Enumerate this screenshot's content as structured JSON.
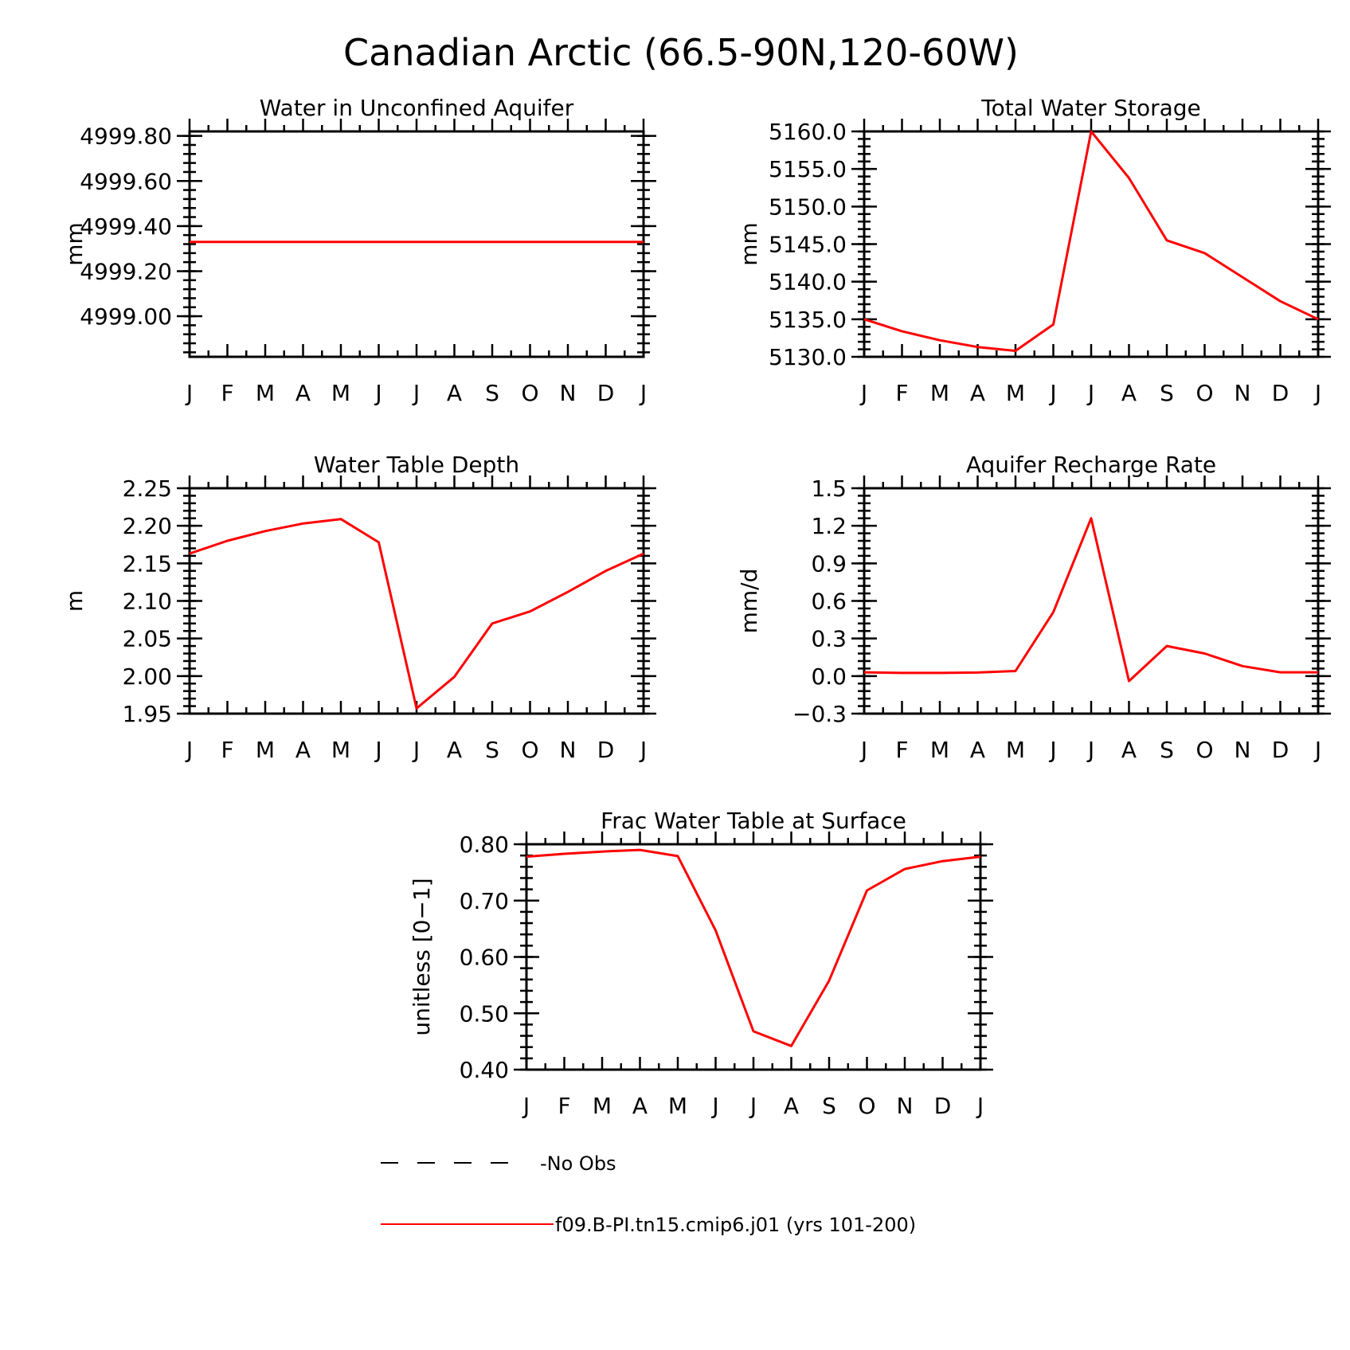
{
  "figure": {
    "title": "Canadian Arctic (66.5-90N,120-60W)"
  },
  "colors": {
    "model": "#ff0000",
    "obs": "#000000"
  },
  "legend": {
    "items": [
      {
        "label": "-No Obs",
        "style": "dashed"
      },
      {
        "label": "f09.B-PI.tn15.cmip6.j01 (yrs 101-200)",
        "style": "solid"
      }
    ]
  },
  "chart_data": [
    {
      "type": "line",
      "title": "Water in Unconfined Aquifer",
      "ylabel": "mm",
      "categories": [
        "J",
        "F",
        "M",
        "A",
        "M",
        "J",
        "J",
        "A",
        "S",
        "O",
        "N",
        "D",
        "J"
      ],
      "ylim": [
        4998.82,
        4999.82
      ],
      "yticks": [
        4999.0,
        4999.2,
        4999.4,
        4999.6,
        4999.8
      ],
      "ytick_labels": [
        "4999.00",
        "4999.20",
        "4999.40",
        "4999.60",
        "4999.80"
      ],
      "yminor": 0.04,
      "series": [
        {
          "values": [
            4999.33,
            4999.33,
            4999.33,
            4999.33,
            4999.33,
            4999.33,
            4999.33,
            4999.33,
            4999.33,
            4999.33,
            4999.33,
            4999.33,
            4999.33
          ]
        }
      ]
    },
    {
      "type": "line",
      "title": "Total Water Storage",
      "ylabel": "mm",
      "categories": [
        "J",
        "F",
        "M",
        "A",
        "M",
        "J",
        "J",
        "A",
        "S",
        "O",
        "N",
        "D",
        "J"
      ],
      "ylim": [
        5130.0,
        5160.0
      ],
      "yticks": [
        5130.0,
        5135.0,
        5140.0,
        5145.0,
        5150.0,
        5155.0,
        5160.0
      ],
      "ytick_labels": [
        "5130.0",
        "5135.0",
        "5140.0",
        "5145.0",
        "5150.0",
        "5155.0",
        "5160.0"
      ],
      "yminor": 1.0,
      "series": [
        {
          "values": [
            5135.0,
            5133.4,
            5132.2,
            5131.3,
            5130.8,
            5134.3,
            5160.0,
            5153.8,
            5145.5,
            5143.8,
            5140.6,
            5137.4,
            5135.0
          ]
        }
      ]
    },
    {
      "type": "line",
      "title": "Water Table Depth",
      "ylabel": "m",
      "categories": [
        "J",
        "F",
        "M",
        "A",
        "M",
        "J",
        "J",
        "A",
        "S",
        "O",
        "N",
        "D",
        "J"
      ],
      "ylim": [
        1.95,
        2.25
      ],
      "yticks": [
        1.95,
        2.0,
        2.05,
        2.1,
        2.15,
        2.2,
        2.25
      ],
      "ytick_labels": [
        "1.95",
        "2.00",
        "2.05",
        "2.10",
        "2.15",
        "2.20",
        "2.25"
      ],
      "yminor": 0.01,
      "series": [
        {
          "values": [
            2.163,
            2.18,
            2.193,
            2.203,
            2.209,
            2.178,
            1.957,
            1.999,
            2.07,
            2.086,
            2.112,
            2.14,
            2.163
          ]
        }
      ]
    },
    {
      "type": "line",
      "title": "Aquifer Recharge Rate",
      "ylabel": "mm/d",
      "categories": [
        "J",
        "F",
        "M",
        "A",
        "M",
        "J",
        "J",
        "A",
        "S",
        "O",
        "N",
        "D",
        "J"
      ],
      "ylim": [
        -0.3,
        1.5
      ],
      "yticks": [
        -0.3,
        0.0,
        0.3,
        0.6,
        0.9,
        1.2,
        1.5
      ],
      "ytick_labels": [
        "-0.3",
        "0.0",
        "0.3",
        "0.6",
        "0.9",
        "1.2",
        "1.5"
      ],
      "yminor": 0.06,
      "series": [
        {
          "values": [
            0.03,
            0.025,
            0.025,
            0.028,
            0.04,
            0.51,
            1.26,
            -0.04,
            0.24,
            0.18,
            0.08,
            0.03,
            0.03
          ]
        }
      ]
    },
    {
      "type": "line",
      "title": "Frac Water Table at Surface",
      "ylabel": "unitless [0-1]",
      "categories": [
        "J",
        "F",
        "M",
        "A",
        "M",
        "J",
        "J",
        "A",
        "S",
        "O",
        "N",
        "D",
        "J"
      ],
      "ylim": [
        0.4,
        0.8
      ],
      "yticks": [
        0.4,
        0.5,
        0.6,
        0.7,
        0.8
      ],
      "ytick_labels": [
        "0.40",
        "0.50",
        "0.60",
        "0.70",
        "0.80"
      ],
      "yminor": 0.02,
      "series": [
        {
          "values": [
            0.778,
            0.783,
            0.787,
            0.79,
            0.779,
            0.647,
            0.468,
            0.442,
            0.558,
            0.718,
            0.756,
            0.77,
            0.778
          ]
        }
      ]
    }
  ]
}
